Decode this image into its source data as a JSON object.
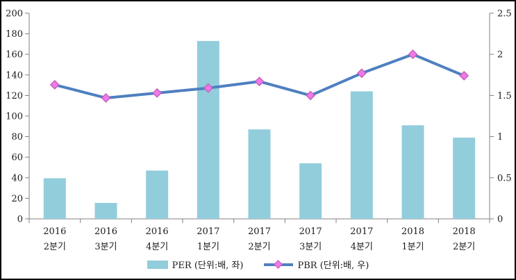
{
  "chart_data": {
    "type": "bar",
    "subtype": "combo-bar-line",
    "categories": [
      "2016 2분기",
      "2016 3분기",
      "2016 4분기",
      "2017 1분기",
      "2017 2분기",
      "2017 3분기",
      "2017 4분기",
      "2018 1분기",
      "2018 2분기"
    ],
    "category_labels": [
      [
        "2016",
        "2분기"
      ],
      [
        "2016",
        "3분기"
      ],
      [
        "2016",
        "4분기"
      ],
      [
        "2017",
        "1분기"
      ],
      [
        "2017",
        "2분기"
      ],
      [
        "2017",
        "3분기"
      ],
      [
        "2017",
        "4분기"
      ],
      [
        "2018",
        "1분기"
      ],
      [
        "2018",
        "2분기"
      ]
    ],
    "series": [
      {
        "name": "PER (단위:배, 좌)",
        "type": "bar",
        "axis": "left",
        "color": "#92CDDC",
        "values": [
          39.5,
          15.5,
          47,
          173,
          87,
          54,
          124,
          91,
          79
        ]
      },
      {
        "name": "PBR (단위:배, 우)",
        "type": "line",
        "axis": "right",
        "color": "#4E80C0",
        "marker": "diamond",
        "marker_color": "#EE7AE9",
        "marker_border": "#C45AB8",
        "values": [
          1.63,
          1.47,
          1.53,
          1.59,
          1.67,
          1.5,
          1.77,
          2.0,
          1.74
        ]
      }
    ],
    "left_axis": {
      "min": 0,
      "max": 200,
      "step": 20,
      "ticks": [
        "0",
        "20",
        "40",
        "60",
        "80",
        "100",
        "120",
        "140",
        "160",
        "180",
        "200"
      ]
    },
    "right_axis": {
      "min": 0,
      "max": 2.5,
      "step": 0.5,
      "ticks": [
        "0",
        "0.5",
        "1",
        "1.5",
        "2",
        "2.5"
      ]
    },
    "axis_color": "#808080",
    "label_color": "#1a1a1a",
    "legend_position": "bottom",
    "grid": "off",
    "title": ""
  }
}
